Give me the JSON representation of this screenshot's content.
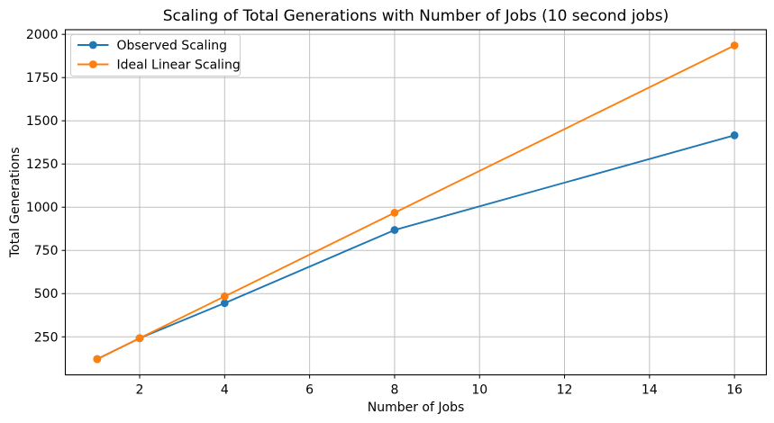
{
  "figure": {
    "background": "#ffffff"
  },
  "chart_data": {
    "type": "line",
    "title": "Scaling of Total Generations with Number of Jobs (10 second jobs)",
    "xlabel": "Number of Jobs",
    "ylabel": "Total Generations",
    "x": [
      1,
      2,
      4,
      8,
      16
    ],
    "series": [
      {
        "name": "Observed Scaling",
        "color": "#1f77b4",
        "values": [
          121,
          242,
          445,
          868,
          1416
        ]
      },
      {
        "name": "Ideal Linear Scaling",
        "color": "#ff7f0e",
        "values": [
          121,
          242,
          484,
          968,
          1936
        ]
      }
    ],
    "xticks": [
      2,
      4,
      6,
      8,
      10,
      12,
      14,
      16
    ],
    "yticks": [
      250,
      500,
      750,
      1000,
      1250,
      1500,
      1750,
      2000
    ],
    "xlim": [
      0.25,
      16.75
    ],
    "ylim": [
      30,
      2027
    ],
    "grid": true,
    "grid_color": "#c0c0c0",
    "axis_color": "#000000",
    "text_color": "#000000",
    "marker": "circle",
    "legend": {
      "position": "upper-left",
      "background": "#ffffff",
      "border_color": "#cccccc"
    }
  }
}
